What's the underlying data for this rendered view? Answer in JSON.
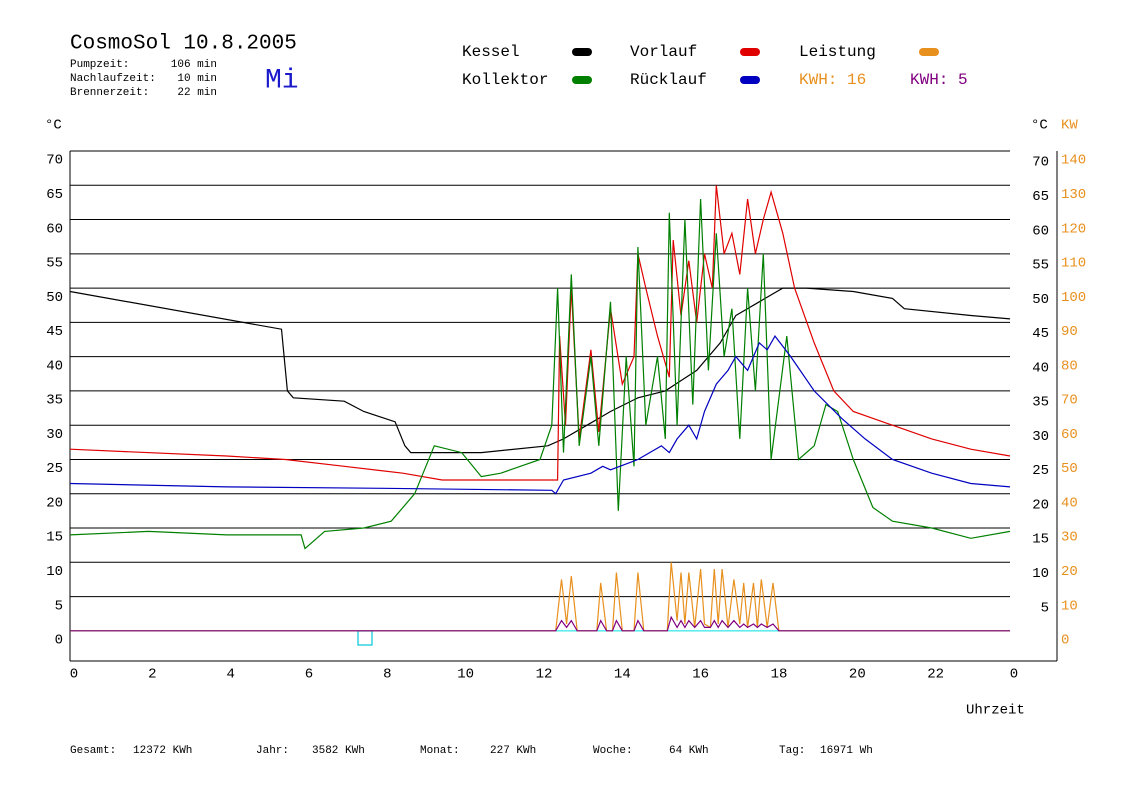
{
  "chart_data": {
    "type": "line",
    "title": "CosmoSol 10.8.2005",
    "weekday": "Mi",
    "weekday_color": "#1a1acc",
    "stats": [
      {
        "label": "Pumpzeit:",
        "value": "106 min"
      },
      {
        "label": "Nachlaufzeit:",
        "value": "10 min"
      },
      {
        "label": "Brennerzeit:",
        "value": "22 min"
      }
    ],
    "kwh_labels": [
      {
        "text": "KWH: 16",
        "series": 2
      },
      {
        "text": "KWH: 5",
        "series": 5
      }
    ],
    "y_unit": "°C",
    "y2_unit": "°C",
    "y2_unit_kw": "KW",
    "x_label": "Uhrzeit",
    "xlim": [
      0,
      25.2
    ],
    "xticks": [
      0,
      2,
      4,
      6,
      8,
      10,
      12,
      14,
      16,
      18,
      20,
      22,
      {
        "value": 24,
        "label": "0"
      }
    ],
    "ylim": [
      -4.4,
      70
    ],
    "yticks": [
      0,
      5,
      10,
      15,
      20,
      25,
      30,
      35,
      40,
      45,
      50,
      55,
      60,
      65,
      70
    ],
    "y2lim": [
      -8.8,
      140
    ],
    "y2ticks": [
      0,
      10,
      20,
      30,
      40,
      50,
      60,
      70,
      80,
      90,
      100,
      110,
      120,
      130,
      140
    ],
    "grid": true,
    "zero_line_color": "#00e0e0",
    "y2_color": "#e8901e",
    "series": [
      {
        "name": "Kessel",
        "color": "#000000",
        "x": [
          0,
          5.4,
          5.55,
          5.7,
          7,
          7.5,
          8.3,
          8.55,
          8.7,
          10.5,
          12.2,
          12.6,
          13.2,
          13.8,
          14.5,
          15.2,
          15.6,
          16,
          16.6,
          17,
          17.6,
          18.2,
          18.8,
          20,
          21,
          21.3,
          23,
          24
        ],
        "values": [
          49.5,
          44,
          35,
          34,
          33.5,
          32,
          30.5,
          27,
          26,
          26,
          27,
          28,
          30,
          32,
          34,
          35,
          36.5,
          38,
          42,
          46,
          48,
          50,
          50,
          49.5,
          48.5,
          47,
          46,
          45.5
        ]
      },
      {
        "name": "Vorlauf",
        "color": "#e00000",
        "x": [
          0,
          4,
          5.5,
          7,
          8.5,
          9.5,
          12.45,
          12.5,
          12.65,
          12.8,
          13,
          13.3,
          13.5,
          13.8,
          14.1,
          14.4,
          14.5,
          14.7,
          15,
          15.3,
          15.4,
          15.6,
          15.8,
          16,
          16.2,
          16.4,
          16.5,
          16.7,
          16.9,
          17.1,
          17.3,
          17.5,
          17.7,
          17.9,
          18.2,
          18.5,
          19,
          19.5,
          20,
          21,
          22,
          23,
          24
        ],
        "values": [
          26.5,
          25.5,
          25,
          24,
          23,
          22,
          22,
          43,
          30,
          50,
          28,
          41,
          29,
          47,
          36,
          40,
          55,
          50,
          43,
          37,
          57,
          46,
          54,
          45,
          55,
          50,
          65,
          55,
          58,
          52,
          63,
          55,
          60,
          64,
          58,
          50,
          42,
          35,
          32,
          30,
          28,
          26.5,
          25.5
        ]
      },
      {
        "name": "Leistung",
        "color": "#e8901e",
        "axis": "y2",
        "x": [
          0,
          12.4,
          12.55,
          12.68,
          12.8,
          12.95,
          13.45,
          13.55,
          13.7,
          13.85,
          13.95,
          14.1,
          14.4,
          14.5,
          14.65,
          15.25,
          15.35,
          15.5,
          15.6,
          15.7,
          15.8,
          15.95,
          16.1,
          16.2,
          16.35,
          16.45,
          16.55,
          16.65,
          16.8,
          16.95,
          17.1,
          17.2,
          17.3,
          17.45,
          17.55,
          17.65,
          17.8,
          17.95,
          18.1,
          24
        ],
        "values": [
          0,
          0,
          15,
          2,
          16,
          0,
          0,
          14,
          0,
          0,
          17,
          0,
          0,
          17,
          0,
          0,
          20,
          3,
          17,
          2,
          17,
          1,
          18,
          2,
          1,
          18,
          2,
          18,
          1,
          15,
          2,
          14,
          1,
          14,
          1,
          15,
          1,
          14,
          0,
          0
        ]
      },
      {
        "name": "Kollektor",
        "color": "#008000",
        "x": [
          0,
          2,
          4,
          5.9,
          6,
          6.5,
          7.5,
          8.2,
          8.8,
          9.3,
          10,
          10.5,
          11,
          11.5,
          12,
          12.3,
          12.45,
          12.6,
          12.8,
          13,
          13.3,
          13.5,
          13.8,
          14,
          14.2,
          14.4,
          14.5,
          14.7,
          15,
          15.2,
          15.3,
          15.5,
          15.7,
          15.9,
          16.1,
          16.3,
          16.5,
          16.7,
          16.9,
          17.1,
          17.3,
          17.5,
          17.7,
          17.9,
          18.3,
          18.6,
          19,
          19.3,
          19.6,
          20,
          20.5,
          21,
          22,
          23,
          24
        ],
        "values": [
          14,
          14.5,
          14,
          14,
          12,
          14.5,
          15,
          16,
          20,
          27,
          26,
          22.5,
          23,
          24,
          25,
          30,
          50,
          26,
          52,
          27,
          40,
          27,
          48,
          17.5,
          40,
          24,
          56,
          30,
          40,
          28,
          61,
          30,
          60,
          33,
          63,
          38,
          58,
          40,
          47,
          28,
          50,
          35,
          55,
          25,
          43,
          25,
          27,
          33,
          32,
          25,
          18,
          16,
          15,
          13.5,
          14.5
        ]
      },
      {
        "name": "Rücklauf",
        "color": "#0000c0",
        "x": [
          0,
          4,
          8,
          12.3,
          12.4,
          12.6,
          13.3,
          13.6,
          13.8,
          14.5,
          14.8,
          15.1,
          15.3,
          15.5,
          15.8,
          16,
          16.2,
          16.5,
          16.8,
          17,
          17.3,
          17.6,
          17.8,
          18,
          18.4,
          19,
          19.7,
          20.3,
          21,
          22,
          23,
          24
        ],
        "values": [
          21.5,
          21,
          20.8,
          20.5,
          20,
          22,
          23,
          24,
          23.5,
          25,
          26,
          27,
          26,
          28,
          30,
          28,
          32,
          36,
          38,
          40,
          38,
          42,
          41,
          43,
          40,
          35,
          31,
          28,
          25,
          23,
          21.5,
          21
        ]
      },
      {
        "color": "#800080",
        "axis": "y2",
        "x": [
          0,
          12.4,
          12.55,
          12.68,
          12.8,
          12.95,
          13.45,
          13.55,
          13.7,
          13.85,
          13.95,
          14.1,
          14.4,
          14.5,
          14.65,
          15.25,
          15.35,
          15.5,
          15.6,
          15.7,
          15.8,
          15.95,
          16.1,
          16.2,
          16.35,
          16.45,
          16.55,
          16.65,
          16.8,
          16.95,
          17.1,
          17.2,
          17.3,
          17.45,
          17.55,
          17.65,
          17.8,
          17.95,
          18.1,
          24
        ],
        "values": [
          0,
          0,
          3,
          1,
          3,
          0,
          0,
          3,
          0,
          0,
          3,
          0,
          0,
          3,
          0,
          0,
          4,
          1,
          3,
          1,
          3,
          1,
          3,
          1,
          1,
          3,
          1,
          3,
          1,
          3,
          1,
          2,
          1,
          2,
          1,
          2,
          1,
          2,
          0,
          0
        ]
      }
    ],
    "footer": [
      {
        "label": "Gesamt:",
        "value": "12372 KWh"
      },
      {
        "label": "Jahr:",
        "value": "3582 KWh"
      },
      {
        "label": "Monat:",
        "value": "227 KWh"
      },
      {
        "label": "Woche:",
        "value": "64 KWh"
      },
      {
        "label": "Tag:",
        "value": "16971 Wh"
      }
    ]
  }
}
